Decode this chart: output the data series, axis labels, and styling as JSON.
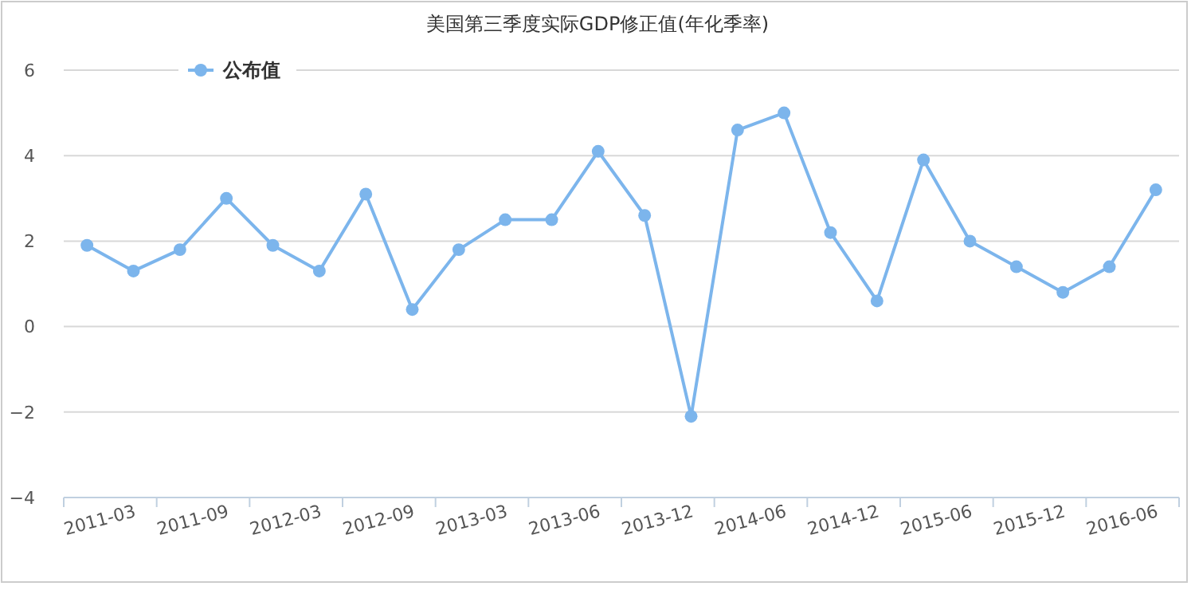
{
  "chart_data": {
    "type": "line",
    "title": "美国第三季度实际GDP修正值(年化季率)",
    "categories": [
      "2011-03",
      null,
      "2011-09",
      null,
      "2012-03",
      null,
      "2012-09",
      null,
      "2013-03",
      null,
      "2013-06",
      null,
      "2013-12",
      null,
      "2014-06",
      null,
      "2014-12",
      null,
      "2015-06",
      null,
      "2015-12",
      null,
      "2016-06",
      null
    ],
    "series": [
      {
        "name": "公布值",
        "color": "#7cb5ec",
        "values": [
          1.9,
          1.3,
          1.8,
          3.0,
          1.9,
          1.3,
          3.1,
          0.4,
          1.8,
          2.5,
          2.5,
          4.1,
          2.6,
          -2.1,
          4.6,
          5.0,
          2.2,
          0.6,
          3.9,
          2.0,
          1.4,
          0.8,
          1.4,
          3.2
        ]
      }
    ],
    "ylim": [
      -4,
      6
    ],
    "yticks": [
      -4,
      -2,
      0,
      2,
      4,
      6
    ],
    "grid": "y",
    "legend": "top left",
    "marker": "circle",
    "line_style": "solid"
  }
}
